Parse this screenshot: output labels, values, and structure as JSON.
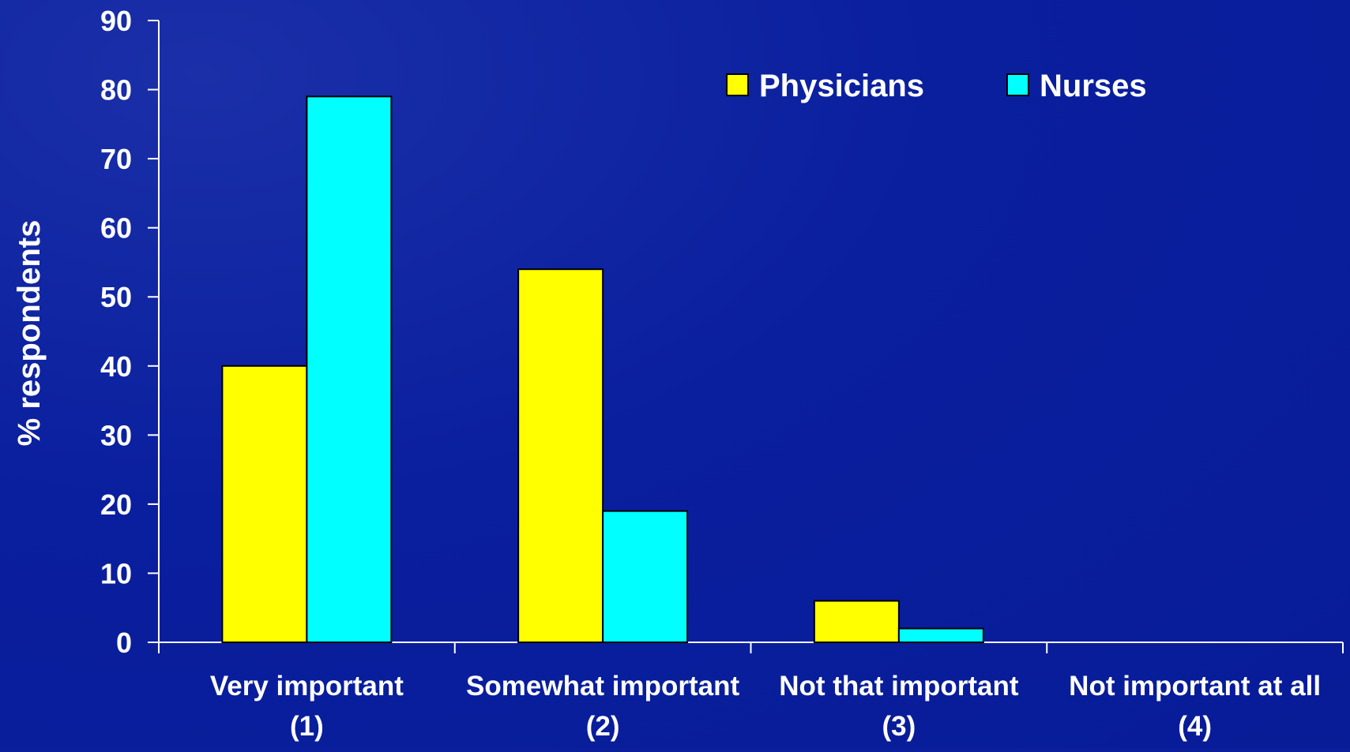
{
  "chart_data": {
    "type": "bar",
    "title": "",
    "xlabel": "",
    "ylabel": "% respondents",
    "ylim": [
      0,
      90
    ],
    "yticks": [
      "0",
      "10",
      "20",
      "30",
      "40",
      "50",
      "60",
      "70",
      "80",
      "90"
    ],
    "categories": [
      {
        "line1": "Very important",
        "line2": "(1)"
      },
      {
        "line1": "Somewhat important",
        "line2": "(2)"
      },
      {
        "line1": "Not that important",
        "line2": "(3)"
      },
      {
        "line1": "Not important at all",
        "line2": "(4)"
      }
    ],
    "series": [
      {
        "name": "Physicians",
        "color": "#ffff00",
        "values": [
          40,
          54,
          6,
          0
        ]
      },
      {
        "name": "Nurses",
        "color": "#00ffff",
        "values": [
          79,
          19,
          2,
          0
        ]
      }
    ],
    "legend_position": "top-right",
    "grid": false
  }
}
